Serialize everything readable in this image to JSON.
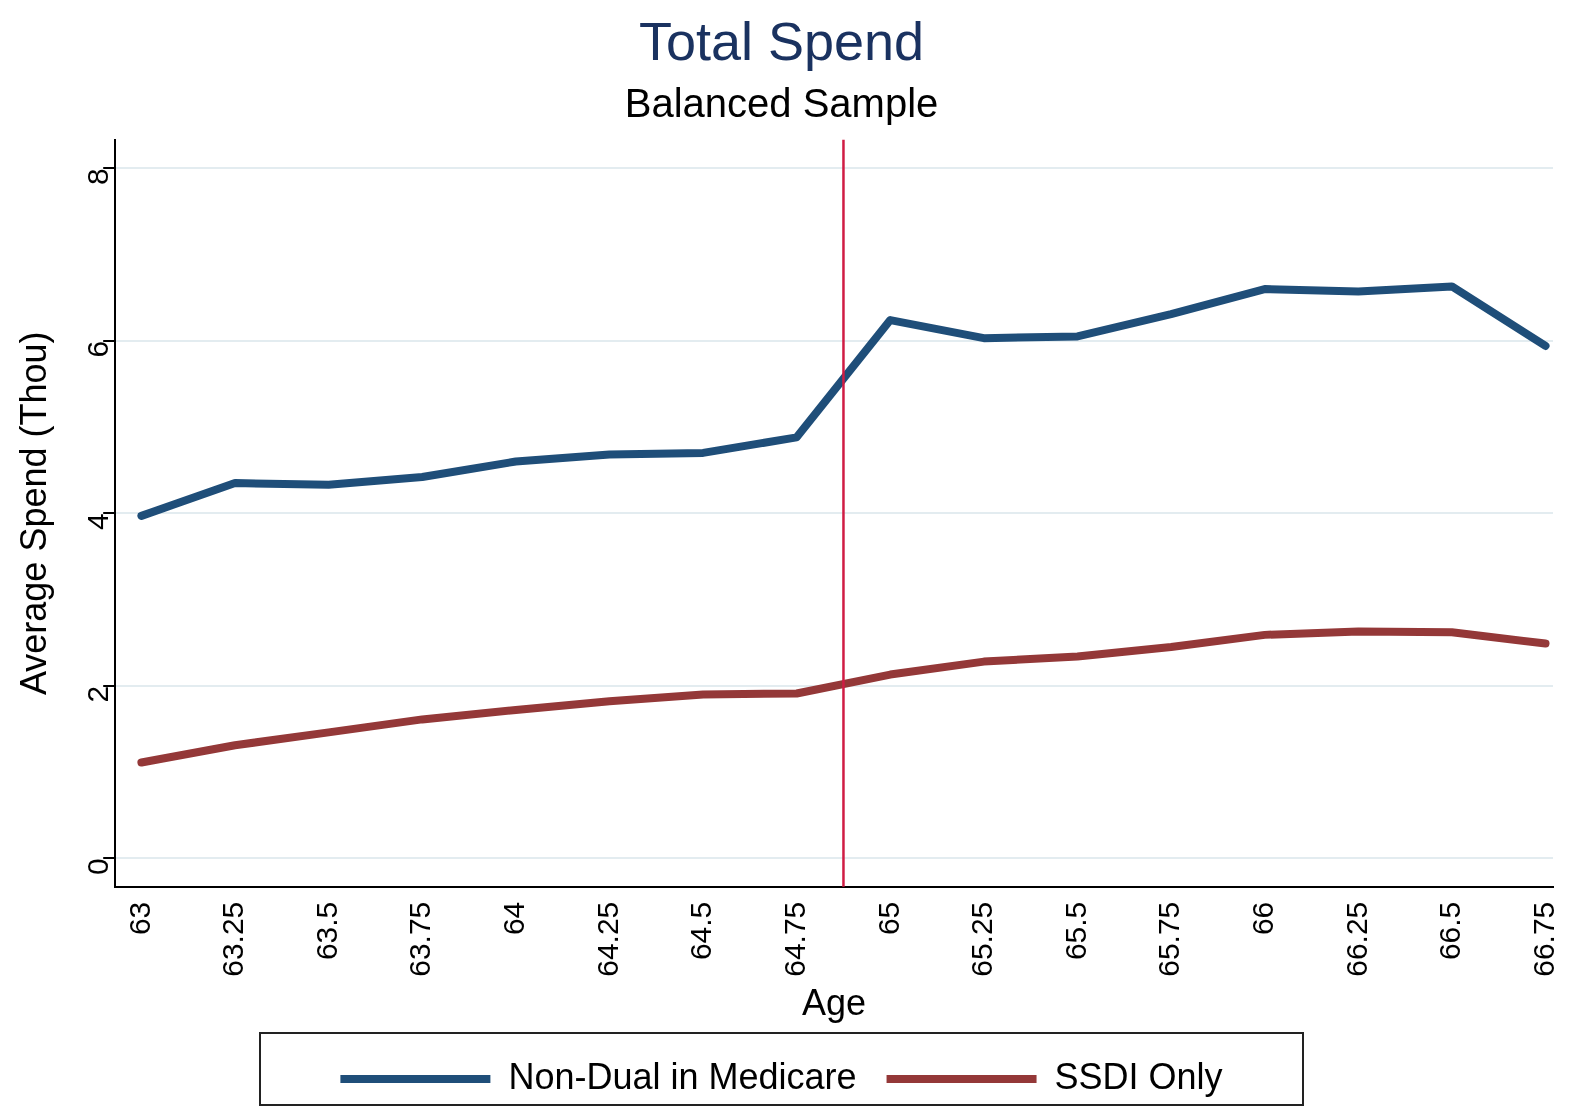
{
  "chart_data": {
    "type": "line",
    "title": "Total Spend",
    "subtitle": "Balanced Sample",
    "xlabel": "Age",
    "ylabel": "Average Spend (Thou)",
    "x": [
      63,
      63.25,
      63.5,
      63.75,
      64,
      64.25,
      64.5,
      64.75,
      65,
      65.25,
      65.5,
      65.75,
      66,
      66.25,
      66.5,
      66.75
    ],
    "series": [
      {
        "name": "Non-Dual in Medicare",
        "color": "#1f4e79",
        "values": [
          3.97,
          4.35,
          4.33,
          4.42,
          4.6,
          4.68,
          4.7,
          4.88,
          6.24,
          6.03,
          6.05,
          6.31,
          6.6,
          6.57,
          6.63,
          5.94
        ]
      },
      {
        "name": "SSDI Only",
        "color": "#943838",
        "values": [
          1.11,
          1.31,
          1.46,
          1.61,
          1.72,
          1.82,
          1.9,
          1.91,
          2.13,
          2.28,
          2.34,
          2.45,
          2.59,
          2.63,
          2.62,
          2.49
        ]
      }
    ],
    "xlim": [
      62.93,
      66.77
    ],
    "xticks": [
      63,
      63.25,
      63.5,
      63.75,
      64,
      64.25,
      64.5,
      64.75,
      65,
      65.25,
      65.5,
      65.75,
      66,
      66.25,
      66.5,
      66.75
    ],
    "ylim": [
      -0.33,
      8.33
    ],
    "yticks": [
      0,
      2,
      4,
      6,
      8
    ],
    "ref_lines": [
      {
        "axis": "x",
        "value": 64.875,
        "color": "#d01c44"
      }
    ],
    "grid": "y",
    "legend": "bottom",
    "marker": "none",
    "line_style": "solid"
  }
}
